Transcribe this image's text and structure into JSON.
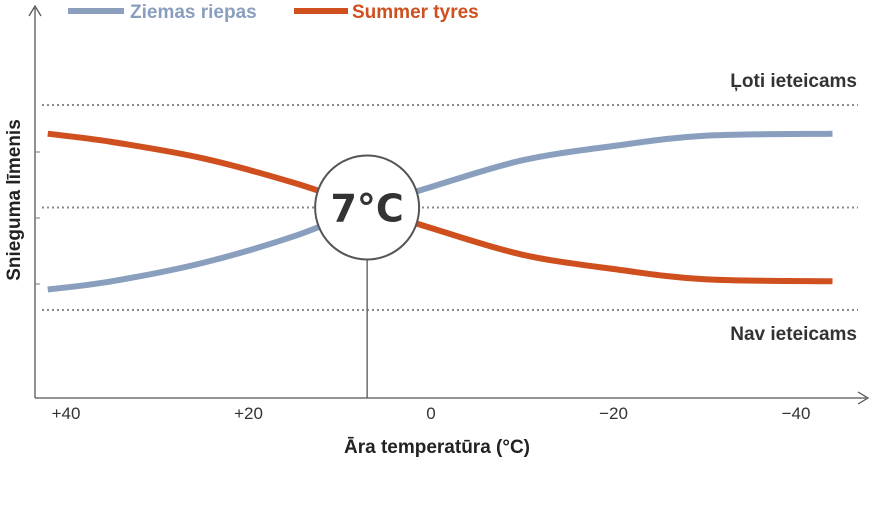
{
  "chart_data": {
    "type": "line",
    "xlabel": "Āra temperatūra (°C)",
    "ylabel": "Snieguma līmenis",
    "x_ticks": [
      40,
      20,
      0,
      -20,
      -40
    ],
    "x_tick_labels": [
      "+40",
      "+20",
      "0",
      "−20",
      "−40"
    ],
    "x_axis_reversed": true,
    "reference_lines": [
      {
        "label": "Ļoti ieteicams",
        "y": 1.0
      },
      {
        "label": "",
        "y": 0.5
      },
      {
        "label": "Nav ieteicams",
        "y": 0.0
      }
    ],
    "crossover": {
      "label": "7°C",
      "x": 7,
      "y": 0.5
    },
    "series": [
      {
        "name": "Ziemas riepas",
        "color": "#8a9fbe",
        "x": [
          42,
          35,
          25,
          15,
          7,
          0,
          -10,
          -20,
          -30,
          -44
        ],
        "y": [
          0.1,
          0.14,
          0.23,
          0.36,
          0.5,
          0.6,
          0.73,
          0.8,
          0.85,
          0.86
        ]
      },
      {
        "name": "Summer tyres",
        "color": "#cf4f1e",
        "x": [
          42,
          35,
          25,
          15,
          7,
          0,
          -10,
          -20,
          -30,
          -44
        ],
        "y": [
          0.86,
          0.82,
          0.74,
          0.62,
          0.5,
          0.4,
          0.27,
          0.2,
          0.15,
          0.14
        ]
      }
    ],
    "grid": false,
    "legend": "top-left"
  }
}
